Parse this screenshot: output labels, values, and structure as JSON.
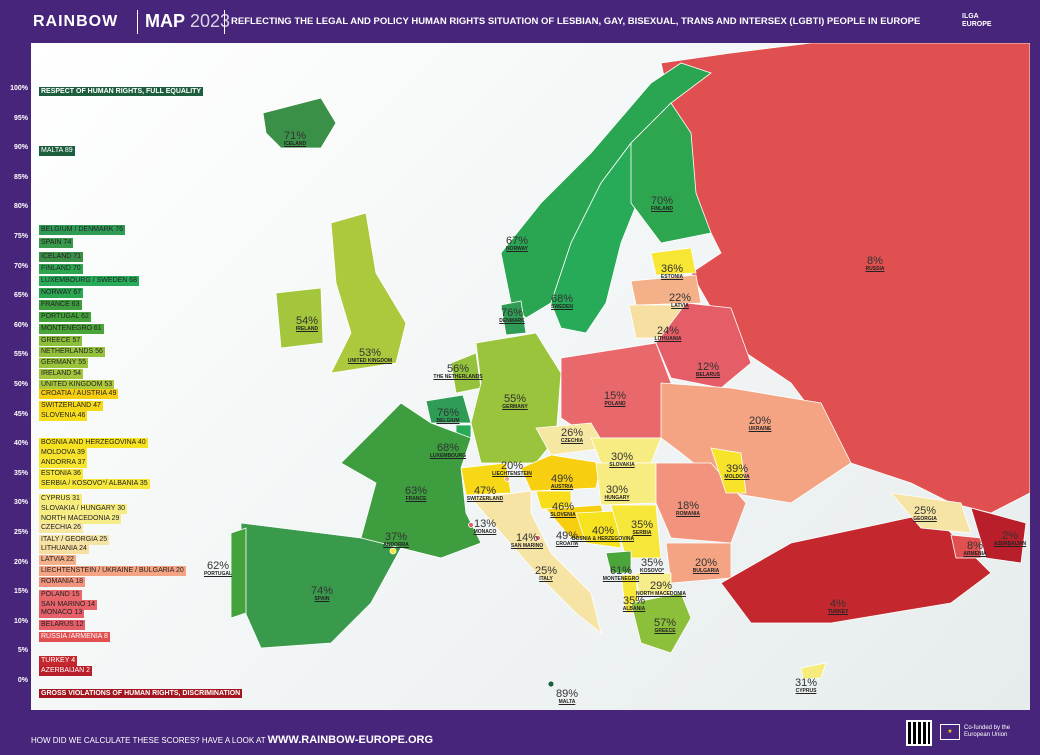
{
  "header": {
    "brand": "RAINBOW",
    "map": "MAP",
    "year": "2023",
    "subtitle": "REFLECTING THE LEGAL AND POLICY HUMAN RIGHTS SITUATION OF LESBIAN, GAY, BISEXUAL, TRANS AND INTERSEX (LGBTI) PEOPLE IN EUROPE",
    "partner": "ILGA EUROPE"
  },
  "scale": [
    "100%",
    "95%",
    "90%",
    "85%",
    "80%",
    "75%",
    "70%",
    "65%",
    "60%",
    "55%",
    "50%",
    "45%",
    "40%",
    "35%",
    "30%",
    "25%",
    "20%",
    "15%",
    "10%",
    "5%",
    "0%"
  ],
  "legend": {
    "top": "RESPECT OF HUMAN RIGHTS, FULL EQUALITY",
    "bottom": "GROSS VIOLATIONS OF HUMAN RIGHTS, DISCRIMINATION",
    "items": [
      {
        "label": "MALTA 89",
        "color": "#1d5e3e"
      },
      {
        "label": "BELGIUM / DENMARK 76",
        "color": "#2f9c56"
      },
      {
        "label": "SPAIN 74",
        "color": "#3a9a4c"
      },
      {
        "label": "ICELAND 71",
        "color": "#3b9048"
      },
      {
        "label": "FINLAND 70",
        "color": "#2ea650"
      },
      {
        "label": "LUXEMBOURG / SWEDEN 68",
        "color": "#27ab58"
      },
      {
        "label": "NORWAY 67",
        "color": "#2aa552"
      },
      {
        "label": "FRANCE 63",
        "color": "#3d9d3f"
      },
      {
        "label": "PORTUGAL 62",
        "color": "#43a23c"
      },
      {
        "label": "MONTENEGRO 61",
        "color": "#4aa53a"
      },
      {
        "label": "GREECE 57",
        "color": "#8cbf3a"
      },
      {
        "label": "NETHERLANDS 56",
        "color": "#95c23c"
      },
      {
        "label": "GERMANY 55",
        "color": "#9ac43c"
      },
      {
        "label": "IRELAND 54",
        "color": "#a3c63c"
      },
      {
        "label": "UNITED KINGDOM 53",
        "color": "#acc93e"
      },
      {
        "label": "CROATIA / AUSTRIA 49",
        "color": "#f7cf10"
      },
      {
        "label": "SWITZERLAND 47",
        "color": "#f7d816"
      },
      {
        "label": "SLOVENIA 46",
        "color": "#f7dd1c"
      },
      {
        "label": "BOSNIA AND HERZEGOVINA 40",
        "color": "#f7e21f"
      },
      {
        "label": "MOLDOVA 39",
        "color": "#f7e42a"
      },
      {
        "label": "ANDORRA 37",
        "color": "#f7e52e"
      },
      {
        "label": "ESTONIA 36",
        "color": "#f7e633"
      },
      {
        "label": "SERBIA / KOSOVO*/ ALBANIA 35",
        "color": "#f7e73a"
      },
      {
        "label": "CYPRUS 31",
        "color": "#f6ec7c"
      },
      {
        "label": "SLOVAKIA / HUNGARY 30",
        "color": "#f6ec82"
      },
      {
        "label": "NORTH MACEDONIA 29",
        "color": "#f6ec8a"
      },
      {
        "label": "CZECHIA 26",
        "color": "#f6e7a2"
      },
      {
        "label": "ITALY / GEORGIA 25",
        "color": "#f6e4a4"
      },
      {
        "label": "LITHUANIA 24",
        "color": "#f6dfa0"
      },
      {
        "label": "LATVIA 22",
        "color": "#f4b088"
      },
      {
        "label": "LIECHTENSTEIN / UKRAINE / BULGARIA 20",
        "color": "#f4a383"
      },
      {
        "label": "ROMANIA 18",
        "color": "#f1937d"
      },
      {
        "label": "POLAND 15",
        "color": "#e9686c"
      },
      {
        "label": "SAN MARINO 14",
        "color": "#e8636a"
      },
      {
        "label": "MONACO 13",
        "color": "#e75f68"
      },
      {
        "label": "BELARUS 12",
        "color": "#e55d67"
      },
      {
        "label": "RUSSIA /ARMENIA 8",
        "color": "#e05050"
      },
      {
        "label": "TURKEY 4",
        "color": "#c4282e"
      },
      {
        "label": "AZERBAIJAN 2",
        "color": "#b91f2b"
      }
    ]
  },
  "countries": [
    {
      "name": "ICELAND",
      "pct": "71%"
    },
    {
      "name": "NORWAY",
      "pct": "67%"
    },
    {
      "name": "SWEDEN",
      "pct": "68%"
    },
    {
      "name": "FINLAND",
      "pct": "70%"
    },
    {
      "name": "RUSSIA",
      "pct": "8%"
    },
    {
      "name": "ESTONIA",
      "pct": "36%"
    },
    {
      "name": "LATVIA",
      "pct": "22%"
    },
    {
      "name": "LITHUANIA",
      "pct": "24%"
    },
    {
      "name": "DENMARK",
      "pct": "76%"
    },
    {
      "name": "IRELAND",
      "pct": "54%"
    },
    {
      "name": "UNITED KINGDOM",
      "pct": "53%"
    },
    {
      "name": "THE NETHERLANDS",
      "pct": "56%"
    },
    {
      "name": "BELARUS",
      "pct": "12%"
    },
    {
      "name": "POLAND",
      "pct": "15%"
    },
    {
      "name": "GERMANY",
      "pct": "55%"
    },
    {
      "name": "BELGIUM",
      "pct": "76%"
    },
    {
      "name": "UKRAINE",
      "pct": "20%"
    },
    {
      "name": "LUXEMBOURG",
      "pct": "68%"
    },
    {
      "name": "CZECHIA",
      "pct": "26%"
    },
    {
      "name": "LIECHTENSTEIN",
      "pct": "20%"
    },
    {
      "name": "SLOVAKIA",
      "pct": "30%"
    },
    {
      "name": "MOLDOVA",
      "pct": "39%"
    },
    {
      "name": "FRANCE",
      "pct": "63%"
    },
    {
      "name": "SWITZERLAND",
      "pct": "47%"
    },
    {
      "name": "AUSTRIA",
      "pct": "49%"
    },
    {
      "name": "HUNGARY",
      "pct": "30%"
    },
    {
      "name": "SLOVENIA",
      "pct": "46%"
    },
    {
      "name": "ROMANIA",
      "pct": "18%"
    },
    {
      "name": "GEORGIA",
      "pct": "25%"
    },
    {
      "name": "CROATIA",
      "pct": "49%"
    },
    {
      "name": "BOSNIA & HERZEGOVINA",
      "pct": "40%"
    },
    {
      "name": "SERBIA",
      "pct": "35%"
    },
    {
      "name": "MONACO",
      "pct": "13%"
    },
    {
      "name": "ANDORRA",
      "pct": "37%"
    },
    {
      "name": "SAN MARINO",
      "pct": "14%"
    },
    {
      "name": "AZERBAIJAN",
      "pct": "2%"
    },
    {
      "name": "ARMENIA",
      "pct": "8%"
    },
    {
      "name": "PORTUGAL",
      "pct": "62%"
    },
    {
      "name": "ITALY",
      "pct": "25%"
    },
    {
      "name": "MONTENEGRO",
      "pct": "61%"
    },
    {
      "name": "KOSOVO*",
      "pct": "35%"
    },
    {
      "name": "BULGARIA",
      "pct": "20%"
    },
    {
      "name": "NORTH MACEDONIA",
      "pct": "29%"
    },
    {
      "name": "ALBANIA",
      "pct": "35%"
    },
    {
      "name": "TURKEY",
      "pct": "4%"
    },
    {
      "name": "GREECE",
      "pct": "57%"
    },
    {
      "name": "SPAIN",
      "pct": "74%"
    },
    {
      "name": "CYPRUS",
      "pct": "31%"
    },
    {
      "name": "MALTA",
      "pct": "89%"
    }
  ],
  "footer": {
    "question": "HOW DID WE CALCULATE THESE SCORES? HAVE A LOOK AT",
    "url": "WWW.RAINBOW-EUROPE.ORG",
    "eu": "Co-funded by the European Union"
  }
}
